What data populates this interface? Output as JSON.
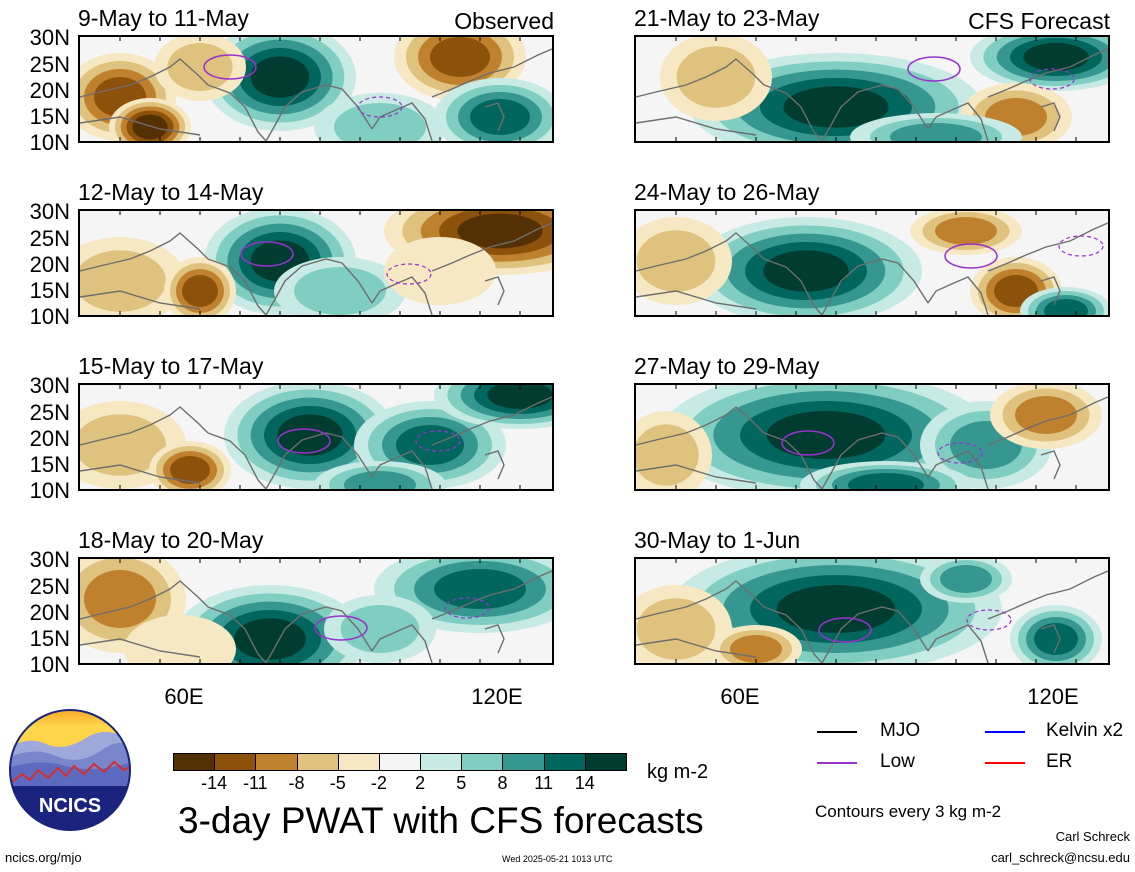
{
  "header": {
    "observed_label": "Observed",
    "forecast_label": "CFS Forecast"
  },
  "colors": {
    "scale": [
      "#543005",
      "#8c510a",
      "#bf812d",
      "#dfc27d",
      "#f6e8c3",
      "#f5f5f5",
      "#c7eae5",
      "#80cdc1",
      "#35978f",
      "#01665e",
      "#003c30"
    ],
    "mjo": "#000000",
    "kelvin": "#0000ff",
    "low": "#9932cc",
    "er": "#ff0000",
    "coast": "#6e6e6e"
  },
  "panels": [
    {
      "id": "obs-1",
      "title": "9-May to 11-May",
      "column": "left"
    },
    {
      "id": "obs-2",
      "title": "12-May to 14-May",
      "column": "left"
    },
    {
      "id": "obs-3",
      "title": "15-May to 17-May",
      "column": "left"
    },
    {
      "id": "obs-4",
      "title": "18-May to 20-May",
      "column": "left"
    },
    {
      "id": "fc-1",
      "title": "21-May to 23-May",
      "column": "right"
    },
    {
      "id": "fc-2",
      "title": "24-May to 26-May",
      "column": "right"
    },
    {
      "id": "fc-3",
      "title": "27-May to 29-May",
      "column": "right"
    },
    {
      "id": "fc-4",
      "title": "30-May to 1-Jun",
      "column": "right"
    }
  ],
  "axes": {
    "lat_labels": [
      "30N",
      "25N",
      "20N",
      "15N",
      "10N"
    ],
    "lon_labels": [
      "60E",
      "120E"
    ]
  },
  "colorbar": {
    "ticks": [
      "-14",
      "-11",
      "-8",
      "-5",
      "-2",
      "2",
      "5",
      "8",
      "11",
      "14"
    ],
    "unit": "kg m-2"
  },
  "title": "3-day PWAT with CFS forecasts",
  "logo_text": "NCICS",
  "legend": [
    {
      "label": "MJO",
      "color_key": "mjo"
    },
    {
      "label": "Kelvin x2",
      "color_key": "kelvin"
    },
    {
      "label": "Low",
      "color_key": "low"
    },
    {
      "label": "ER",
      "color_key": "er"
    }
  ],
  "contour_note": "Contours every 3 kg m-2",
  "footer": {
    "url": "ncics.org/mjo",
    "timestamp": "Wed 2025-05-21 1013 UTC",
    "author": "Carl Schreck",
    "email": "carl_schreck@ncsu.edu"
  }
}
